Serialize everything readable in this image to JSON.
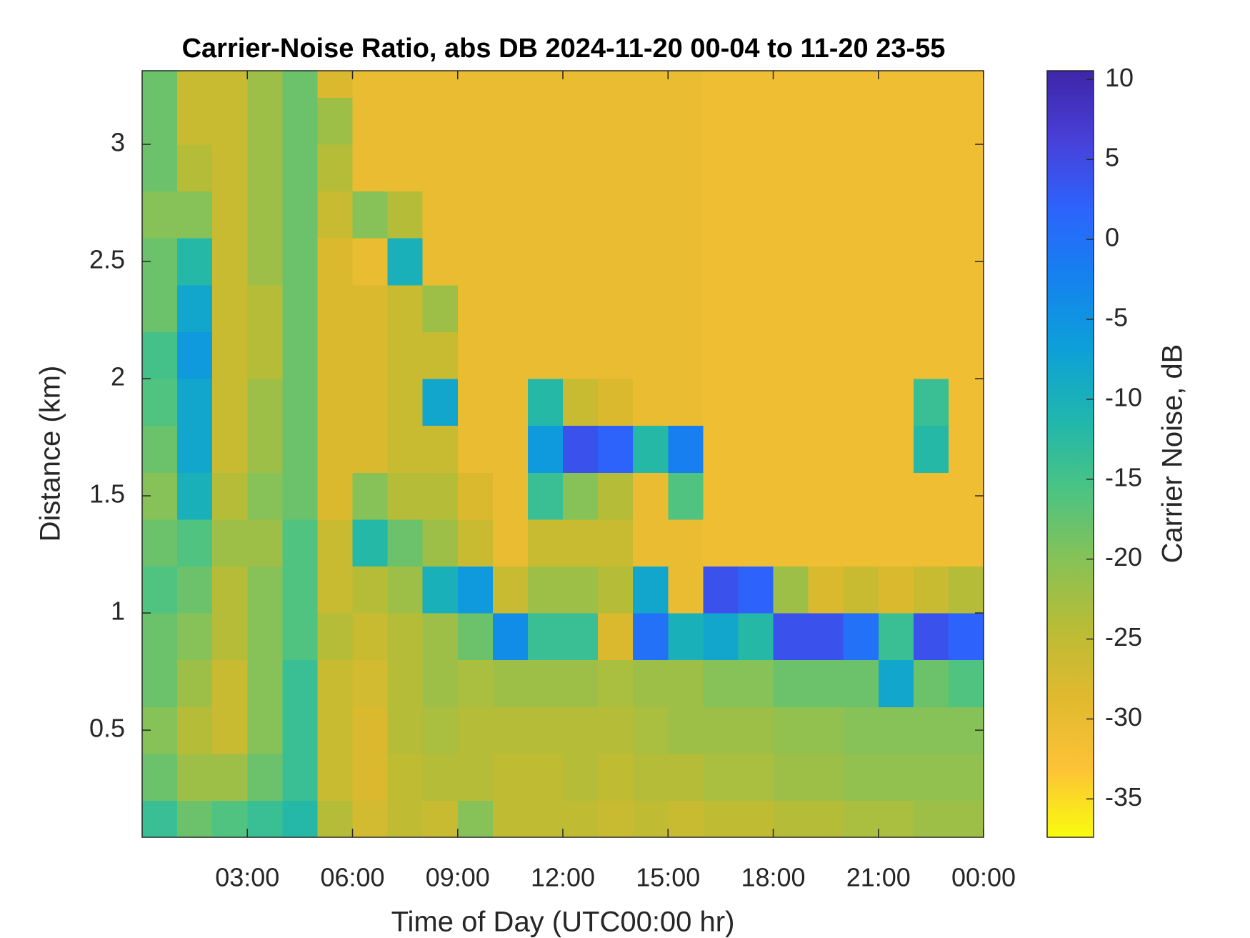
{
  "chart_data": {
    "type": "heatmap",
    "title": "Carrier-Noise Ratio, abs DB 2024-11-20 00-04 to 11-20 23-55",
    "xlabel": "Time of Day (UTC00:00 hr)",
    "ylabel": "Distance (km)",
    "colorbar_label": "Carrier Noise, dB",
    "xlim": [
      0,
      24
    ],
    "ylim": [
      0.043,
      3.314
    ],
    "clim": [
      -37.4,
      10.55
    ],
    "xticks": [
      {
        "value": 3,
        "label": "03:00"
      },
      {
        "value": 6,
        "label": "06:00"
      },
      {
        "value": 9,
        "label": "09:00"
      },
      {
        "value": 12,
        "label": "12:00"
      },
      {
        "value": 15,
        "label": "15:00"
      },
      {
        "value": 18,
        "label": "18:00"
      },
      {
        "value": 21,
        "label": "21:00"
      },
      {
        "value": 24,
        "label": "00:00"
      }
    ],
    "yticks": [
      0.5,
      1,
      1.5,
      2,
      2.5,
      3
    ],
    "cticks": [
      -35,
      -30,
      -25,
      -20,
      -15,
      -10,
      -5,
      0,
      5,
      10
    ],
    "colormap": [
      "#f9fb0e",
      "#fcc237",
      "#e1b92e",
      "#b9bc35",
      "#86c257",
      "#4ac383",
      "#1fb6ae",
      "#0da0d8",
      "#1483ee",
      "#2c64fc",
      "#4840d9",
      "#3e26a8"
    ],
    "xbins": [
      0,
      1,
      2,
      3,
      4,
      5,
      6,
      7,
      8,
      9,
      10,
      11,
      12,
      13,
      14,
      15,
      16,
      17,
      18,
      19,
      20,
      21,
      22,
      23,
      24
    ],
    "ybins": [
      0.043,
      0.2,
      0.4,
      0.6,
      0.8,
      1.0,
      1.2,
      1.4,
      1.6,
      1.8,
      2.0,
      2.2,
      2.4,
      2.6,
      2.8,
      3.0,
      3.2,
      3.314
    ],
    "values": [
      [
        -14,
        -18,
        -16,
        -14,
        -12,
        -24,
        -27,
        -25,
        -26,
        -20,
        -25,
        -25,
        -25,
        -26,
        -25,
        -26,
        -25,
        -25,
        -24,
        -24,
        -23,
        -23,
        -22,
        -22
      ],
      [
        -18,
        -22,
        -22,
        -18,
        -14,
        -26,
        -28,
        -25,
        -24,
        -24,
        -25,
        -25,
        -24,
        -25,
        -24,
        -24,
        -23,
        -23,
        -22,
        -22,
        -21,
        -21,
        -21,
        -21
      ],
      [
        -20,
        -24,
        -26,
        -20,
        -14,
        -26,
        -28,
        -24,
        -23,
        -24,
        -24,
        -24,
        -24,
        -24,
        -23,
        -22,
        -22,
        -22,
        -21,
        -21,
        -20,
        -20,
        -20,
        -20
      ],
      [
        -18,
        -22,
        -26,
        -20,
        -14,
        -26,
        -27,
        -24,
        -22,
        -23,
        -22,
        -22,
        -22,
        -23,
        -22,
        -22,
        -20,
        -20,
        -18,
        -18,
        -18,
        -8,
        -18,
        -16
      ],
      [
        -18,
        -20,
        -24,
        -20,
        -16,
        -24,
        -26,
        -24,
        -22,
        -18,
        -4,
        -14,
        -14,
        -28,
        0,
        -10,
        -8,
        -12,
        4,
        4,
        0,
        -14,
        4,
        2
      ],
      [
        -16,
        -18,
        -24,
        -20,
        -16,
        -26,
        -24,
        -22,
        -10,
        -6,
        -26,
        -22,
        -22,
        -24,
        -8,
        -30,
        4,
        2,
        -22,
        -28,
        -26,
        -28,
        -26,
        -24
      ],
      [
        -18,
        -16,
        -22,
        -22,
        -16,
        -26,
        -12,
        -18,
        -22,
        -26,
        -30,
        -26,
        -26,
        -26,
        -30,
        -30,
        -31,
        -31,
        -31,
        -31,
        -31,
        -31,
        -31,
        -31
      ],
      [
        -20,
        -10,
        -24,
        -20,
        -18,
        -28,
        -20,
        -24,
        -24,
        -28,
        -30,
        -14,
        -20,
        -24,
        -30,
        -16,
        -31,
        -31,
        -31,
        -31,
        -31,
        -31,
        -31,
        -31
      ],
      [
        -18,
        -8,
        -26,
        -22,
        -18,
        -28,
        -28,
        -26,
        -26,
        -30,
        -30,
        -6,
        4,
        2,
        -12,
        -2,
        -31,
        -31,
        -31,
        -31,
        -31,
        -31,
        -12,
        -31
      ],
      [
        -16,
        -8,
        -26,
        -22,
        -18,
        -28,
        -28,
        -26,
        -8,
        -30,
        -30,
        -12,
        -26,
        -28,
        -30,
        -30,
        -31,
        -31,
        -31,
        -31,
        -31,
        -31,
        -14,
        -31
      ],
      [
        -15,
        -6,
        -26,
        -24,
        -18,
        -28,
        -28,
        -26,
        -26,
        -30,
        -30,
        -30,
        -30,
        -30,
        -30,
        -30,
        -31,
        -31,
        -31,
        -31,
        -31,
        -31,
        -31,
        -31
      ],
      [
        -18,
        -8,
        -26,
        -24,
        -18,
        -28,
        -28,
        -26,
        -22,
        -30,
        -30,
        -30,
        -30,
        -30,
        -30,
        -30,
        -31,
        -31,
        -31,
        -31,
        -31,
        -31,
        -31,
        -31
      ],
      [
        -18,
        -12,
        -26,
        -22,
        -18,
        -28,
        -30,
        -10,
        -30,
        -30,
        -30,
        -30,
        -30,
        -30,
        -30,
        -30,
        -31,
        -31,
        -31,
        -31,
        -31,
        -31,
        -31,
        -31
      ],
      [
        -20,
        -20,
        -26,
        -22,
        -18,
        -26,
        -20,
        -24,
        -30,
        -30,
        -30,
        -30,
        -30,
        -30,
        -30,
        -30,
        -31,
        -31,
        -31,
        -31,
        -31,
        -31,
        -31,
        -31
      ],
      [
        -18,
        -24,
        -26,
        -22,
        -18,
        -24,
        -30,
        -30,
        -30,
        -30,
        -30,
        -30,
        -30,
        -30,
        -30,
        -30,
        -31,
        -31,
        -31,
        -31,
        -31,
        -31,
        -31,
        -31
      ],
      [
        -18,
        -26,
        -26,
        -22,
        -18,
        -22,
        -30,
        -30,
        -30,
        -30,
        -30,
        -30,
        -30,
        -30,
        -30,
        -30,
        -31,
        -31,
        -31,
        -31,
        -31,
        -31,
        -31,
        -31
      ],
      [
        -18,
        -26,
        -26,
        -22,
        -18,
        -28,
        -30,
        -30,
        -30,
        -30,
        -30,
        -30,
        -30,
        -30,
        -30,
        -30,
        -31,
        -31,
        -31,
        -31,
        -31,
        -31,
        -31,
        -31
      ]
    ]
  }
}
